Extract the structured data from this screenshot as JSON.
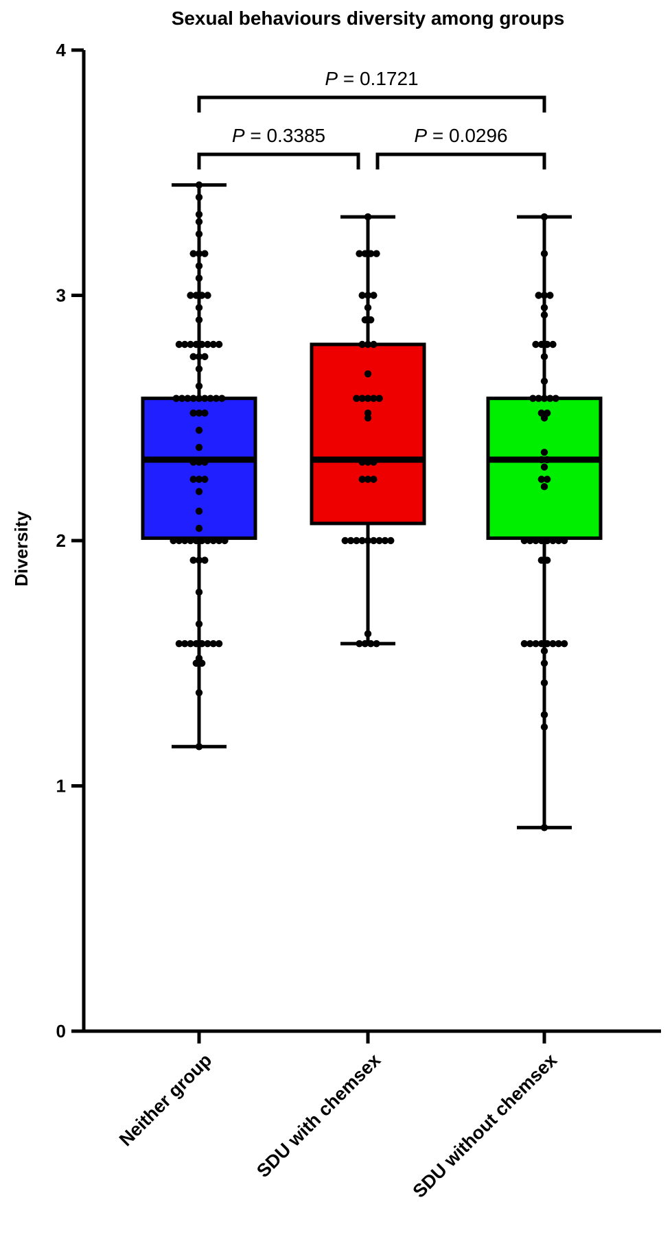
{
  "chart_data": {
    "type": "box",
    "title": "Sexual behaviours diversity among groups",
    "xlabel": "",
    "ylabel": "Diversity",
    "ylim": [
      0,
      4
    ],
    "yticks": [
      "0",
      "1",
      "2",
      "3",
      "4"
    ],
    "categories": [
      "Neither group",
      "SDU with chemsex",
      "SDU without chemsex"
    ],
    "colors": [
      "#1f1fff",
      "#ee0000",
      "#00ee00"
    ],
    "boxes": [
      {
        "name": "Neither group",
        "min": 1.16,
        "q1": 2.01,
        "median": 2.33,
        "q3": 2.58,
        "max": 3.45,
        "points": [
          1.16,
          1.38,
          1.5,
          1.5,
          1.52,
          1.58,
          1.58,
          1.58,
          1.58,
          1.58,
          1.58,
          1.58,
          1.58,
          1.66,
          1.79,
          1.92,
          1.92,
          1.92,
          2.0,
          2.0,
          2.0,
          2.0,
          2.0,
          2.0,
          2.0,
          2.0,
          2.0,
          2.0,
          2.05,
          2.12,
          2.2,
          2.25,
          2.25,
          2.25,
          2.32,
          2.32,
          2.32,
          2.38,
          2.45,
          2.52,
          2.52,
          2.52,
          2.58,
          2.58,
          2.58,
          2.58,
          2.58,
          2.58,
          2.58,
          2.58,
          2.58,
          2.63,
          2.7,
          2.75,
          2.75,
          2.75,
          2.8,
          2.8,
          2.8,
          2.8,
          2.8,
          2.8,
          2.8,
          2.8,
          2.9,
          2.95,
          3.0,
          3.0,
          3.0,
          3.0,
          3.07,
          3.12,
          3.17,
          3.17,
          3.17,
          3.25,
          3.3,
          3.33,
          3.4,
          3.45
        ]
      },
      {
        "name": "SDU with chemsex",
        "min": 1.58,
        "q1": 2.07,
        "median": 2.33,
        "q3": 2.8,
        "max": 3.32,
        "points": [
          1.58,
          1.58,
          1.58,
          1.58,
          1.62,
          2.0,
          2.0,
          2.0,
          2.0,
          2.0,
          2.0,
          2.0,
          2.0,
          2.0,
          2.25,
          2.25,
          2.25,
          2.32,
          2.32,
          2.32,
          2.5,
          2.52,
          2.58,
          2.58,
          2.58,
          2.58,
          2.58,
          2.68,
          2.8,
          2.8,
          2.8,
          2.9,
          2.9,
          2.95,
          3.0,
          3.0,
          3.0,
          3.17,
          3.17,
          3.17,
          3.17,
          3.32
        ]
      },
      {
        "name": "SDU without chemsex",
        "min": 0.83,
        "q1": 2.01,
        "median": 2.33,
        "q3": 2.58,
        "max": 3.32,
        "points": [
          0.83,
          1.24,
          1.29,
          1.42,
          1.5,
          1.55,
          1.58,
          1.58,
          1.58,
          1.58,
          1.58,
          1.58,
          1.58,
          1.58,
          1.92,
          1.92,
          2.0,
          2.0,
          2.0,
          2.0,
          2.0,
          2.0,
          2.0,
          2.0,
          2.22,
          2.25,
          2.25,
          2.3,
          2.33,
          2.33,
          2.36,
          2.5,
          2.52,
          2.52,
          2.58,
          2.58,
          2.58,
          2.58,
          2.58,
          2.65,
          2.75,
          2.8,
          2.8,
          2.8,
          2.8,
          2.92,
          2.95,
          3.0,
          3.0,
          3.0,
          3.17,
          3.32
        ]
      }
    ],
    "comparisons": [
      {
        "label": "P = 0.3385",
        "p_italic": "P",
        "p_value": "= 0.3385",
        "from": 0,
        "to": 1,
        "level": 1
      },
      {
        "label": "P = 0.0296",
        "p_italic": "P",
        "p_value": "= 0.0296",
        "from": 1,
        "to": 2,
        "level": 1
      },
      {
        "label": "P = 0.1721",
        "p_italic": "P",
        "p_value": "= 0.1721",
        "from": 0,
        "to": 2,
        "level": 2
      }
    ],
    "grid": false,
    "legend": "none"
  }
}
